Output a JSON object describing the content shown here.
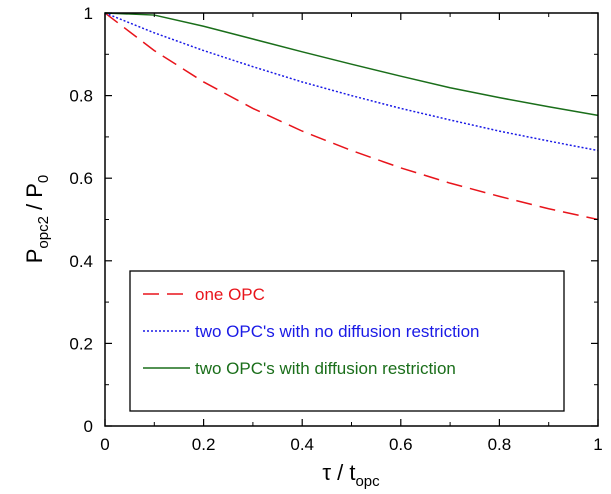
{
  "chart_data": {
    "type": "line",
    "title": "",
    "xlabel": {
      "main": "τ / t",
      "sub": "opc"
    },
    "ylabel": {
      "p": "P",
      "sub1": "opc2",
      "mid": " / P",
      "sub2": "0"
    },
    "xlim": [
      0,
      1
    ],
    "ylim": [
      0,
      1
    ],
    "xticks": [
      "0",
      "0.2",
      "0.4",
      "0.6",
      "0.8",
      "1"
    ],
    "yticks": [
      "0",
      "0.2",
      "0.4",
      "0.6",
      "0.8",
      "1"
    ],
    "legend_position": "lower-left",
    "series": [
      {
        "name": "one OPC",
        "color": "#e8141b",
        "style": "dashed",
        "x": [
          0,
          0.1,
          0.2,
          0.3,
          0.4,
          0.5,
          0.6,
          0.7,
          0.8,
          0.9,
          1.0
        ],
        "y": [
          1.0,
          0.909,
          0.833,
          0.769,
          0.714,
          0.667,
          0.625,
          0.588,
          0.556,
          0.526,
          0.5
        ]
      },
      {
        "name": "two OPC's with no diffusion restriction",
        "color": "#1a1ae6",
        "style": "dotted",
        "x": [
          0,
          0.1,
          0.2,
          0.3,
          0.4,
          0.5,
          0.6,
          0.7,
          0.8,
          0.9,
          1.0
        ],
        "y": [
          1.0,
          0.952,
          0.909,
          0.87,
          0.833,
          0.8,
          0.769,
          0.741,
          0.714,
          0.69,
          0.667
        ]
      },
      {
        "name": "two OPC's with diffusion restriction",
        "color": "#1a6e1a",
        "style": "solid",
        "x": [
          0,
          0.1,
          0.2,
          0.3,
          0.4,
          0.5,
          0.6,
          0.7,
          0.8,
          0.9,
          1.0
        ],
        "y": [
          1.0,
          0.995,
          0.968,
          0.937,
          0.906,
          0.876,
          0.847,
          0.819,
          0.795,
          0.773,
          0.752
        ]
      }
    ]
  }
}
